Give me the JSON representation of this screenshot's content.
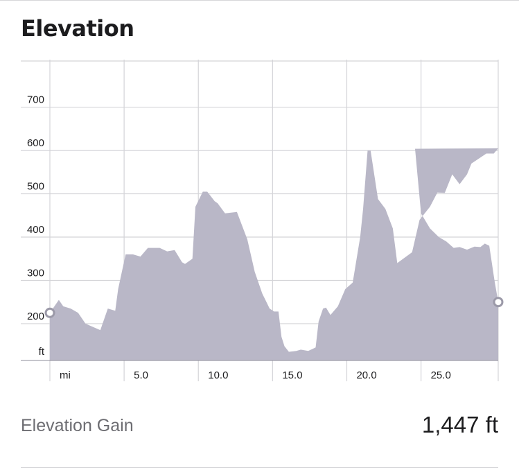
{
  "header": {
    "title": "Elevation"
  },
  "colors": {
    "area_fill": "#b9b7c7",
    "grid": "#d4d4d8",
    "text": "#1c1c1e",
    "muted": "#6d6d72"
  },
  "chart_data": {
    "type": "area",
    "xlabel": "mi",
    "ylabel": "ft",
    "xlim": [
      0,
      30.2
    ],
    "ylim": [
      115,
      810
    ],
    "x_ticks": [
      5.0,
      10.0,
      15.0,
      20.0,
      25.0
    ],
    "x_tick_labels": [
      "5.0",
      "10.0",
      "15.0",
      "20.0",
      "25.0"
    ],
    "y_ticks": [
      200,
      300,
      400,
      500,
      600,
      700
    ],
    "y_tick_labels": [
      "200",
      "300",
      "400",
      "500",
      "600",
      "700"
    ],
    "grid": true,
    "start_marker": true,
    "end_marker": true,
    "series": [
      {
        "x": [
          0,
          0.6,
          0.9,
          1.4,
          1.9,
          2.4,
          3.4,
          3.9,
          4.4,
          4.6,
          5.1,
          5.6,
          6.1,
          6.6,
          7.4,
          7.9,
          8.4,
          8.9,
          9.1,
          9.6,
          9.8,
          10.3,
          10.6,
          11.1,
          11.3,
          11.8,
          12.6,
          12.8,
          13.3,
          13.8,
          14.3,
          14.8,
          15.1,
          15.4,
          15.6,
          15.8,
          16.1,
          16.6,
          16.9,
          17.4,
          17.9,
          18.1,
          18.4,
          18.6,
          18.9,
          19.4,
          19.9,
          20.4,
          20.9,
          21.1,
          21.4,
          21.6,
          22.1,
          22.6,
          23.1,
          23.4,
          24.4,
          24.9,
          25.6,
          26.1,
          26.6,
          27.1,
          27.6,
          28.1,
          28.4,
          29.4,
          29.9,
          30.2
        ],
        "y": [
          225,
          255,
          240,
          235,
          225,
          200,
          185,
          235,
          230,
          280,
          360,
          360,
          355,
          375,
          375,
          367,
          370,
          342,
          338,
          350,
          470,
          505,
          505,
          483,
          478,
          455,
          458,
          440,
          395,
          320,
          270,
          235,
          228,
          228,
          170,
          148,
          135,
          137,
          140,
          137,
          145,
          205,
          235,
          237,
          220,
          240,
          280,
          295,
          400,
          465,
          600,
          600,
          488,
          465,
          420,
          340,
          365,
          440,
          470,
          503,
          502,
          545,
          522,
          545,
          570,
          593,
          593,
          605
        ],
        "y2": [
          604,
          455,
          420,
          400,
          390,
          375,
          377,
          371,
          378,
          377,
          385,
          380,
          300,
          250
        ]
      }
    ]
  },
  "stats": {
    "gain_label": "Elevation Gain",
    "gain_value": "1,447 ft"
  }
}
